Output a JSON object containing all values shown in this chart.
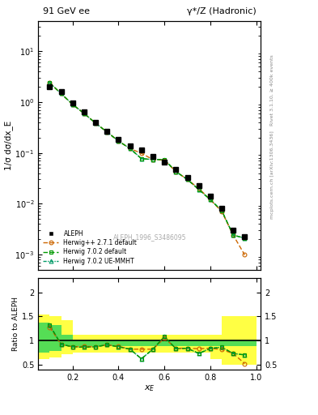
{
  "title_left": "91 GeV ee",
  "title_right": "γ*/Z (Hadronic)",
  "ylabel_main": "1/σ dσ/dx_E",
  "ylabel_ratio": "Ratio to ALEPH",
  "xlabel": "x_E",
  "watermark": "ALEPH_1996_S3486095",
  "right_label_top": "Rivet 3.1.10, ≥ 400k events",
  "right_label_bottom": "mcplots.cern.ch [arXiv:1306.3436]",
  "aleph_x": [
    0.1,
    0.15,
    0.2,
    0.25,
    0.3,
    0.35,
    0.4,
    0.45,
    0.5,
    0.55,
    0.6,
    0.65,
    0.7,
    0.75,
    0.8,
    0.85,
    0.9,
    0.95
  ],
  "aleph_y": [
    2.0,
    1.6,
    0.95,
    0.65,
    0.4,
    0.27,
    0.185,
    0.135,
    0.115,
    0.085,
    0.065,
    0.048,
    0.033,
    0.023,
    0.014,
    0.008,
    0.003,
    0.0022
  ],
  "aleph_yerr": [
    0.06,
    0.05,
    0.025,
    0.018,
    0.012,
    0.008,
    0.006,
    0.005,
    0.004,
    0.003,
    0.002,
    0.002,
    0.0015,
    0.001,
    0.0006,
    0.0004,
    0.0003,
    0.0002
  ],
  "hw271_x": [
    0.1,
    0.15,
    0.2,
    0.25,
    0.3,
    0.35,
    0.4,
    0.45,
    0.5,
    0.55,
    0.6,
    0.65,
    0.7,
    0.75,
    0.8,
    0.85,
    0.9,
    0.95
  ],
  "hw271_y": [
    2.4,
    1.47,
    0.9,
    0.6,
    0.385,
    0.258,
    0.171,
    0.122,
    0.098,
    0.074,
    0.072,
    0.043,
    0.03,
    0.02,
    0.012,
    0.007,
    0.0024,
    0.00098
  ],
  "hw702_x": [
    0.1,
    0.15,
    0.2,
    0.25,
    0.3,
    0.35,
    0.4,
    0.45,
    0.5,
    0.55,
    0.6,
    0.65,
    0.7,
    0.75,
    0.8,
    0.85,
    0.9,
    0.95
  ],
  "hw702_y": [
    2.4,
    1.47,
    0.9,
    0.6,
    0.385,
    0.258,
    0.171,
    0.122,
    0.077,
    0.074,
    0.074,
    0.043,
    0.03,
    0.019,
    0.012,
    0.0073,
    0.0024,
    0.0021
  ],
  "hwue_x": [
    0.1,
    0.15,
    0.2,
    0.25,
    0.3,
    0.35,
    0.4,
    0.45,
    0.5,
    0.55,
    0.6,
    0.65,
    0.7,
    0.75,
    0.8,
    0.85,
    0.9,
    0.95
  ],
  "hwue_y": [
    2.4,
    1.47,
    0.9,
    0.6,
    0.385,
    0.258,
    0.171,
    0.122,
    0.077,
    0.074,
    0.074,
    0.043,
    0.03,
    0.019,
    0.012,
    0.0073,
    0.0024,
    0.0021
  ],
  "ratio_hw271": [
    1.28,
    0.92,
    0.87,
    0.88,
    0.87,
    0.91,
    0.88,
    0.82,
    0.82,
    0.82,
    1.05,
    0.84,
    0.84,
    0.83,
    0.84,
    0.81,
    0.73,
    0.52
  ],
  "ratio_hw702": [
    1.32,
    0.92,
    0.87,
    0.86,
    0.87,
    0.91,
    0.87,
    0.82,
    0.62,
    0.82,
    1.08,
    0.83,
    0.84,
    0.73,
    0.83,
    0.86,
    0.73,
    0.7
  ],
  "ratio_hwue": [
    1.32,
    0.92,
    0.87,
    0.86,
    0.87,
    0.91,
    0.87,
    0.82,
    0.62,
    0.82,
    1.08,
    0.83,
    0.84,
    0.73,
    0.84,
    0.86,
    0.73,
    0.7
  ],
  "band_x_edges": [
    0.05,
    0.1,
    0.15,
    0.2,
    0.25,
    0.3,
    0.35,
    0.4,
    0.45,
    0.5,
    0.55,
    0.6,
    0.65,
    0.7,
    0.75,
    0.8,
    0.85,
    0.9,
    1.0
  ],
  "band_yellow_lo": [
    0.62,
    0.65,
    0.72,
    0.75,
    0.75,
    0.75,
    0.75,
    0.75,
    0.75,
    0.75,
    0.75,
    0.75,
    0.75,
    0.75,
    0.75,
    0.62,
    0.5,
    0.5
  ],
  "band_yellow_hi": [
    1.55,
    1.5,
    1.42,
    1.12,
    1.12,
    1.12,
    1.12,
    1.12,
    1.12,
    1.12,
    1.12,
    1.12,
    1.12,
    1.12,
    1.12,
    1.12,
    1.5,
    1.5
  ],
  "band_green_lo": [
    0.75,
    0.78,
    0.88,
    0.88,
    0.88,
    0.88,
    0.88,
    0.88,
    0.88,
    0.88,
    0.88,
    0.88,
    0.88,
    0.88,
    0.88,
    0.88,
    0.88,
    0.88
  ],
  "band_green_hi": [
    1.38,
    1.32,
    1.12,
    1.02,
    1.02,
    1.02,
    1.02,
    1.02,
    1.02,
    1.02,
    1.02,
    1.02,
    1.02,
    1.02,
    1.02,
    1.02,
    1.02,
    1.02
  ],
  "color_aleph": "#000000",
  "color_hw271": "#cc6600",
  "color_hw702": "#009900",
  "color_hwue": "#009966",
  "color_yellow": "#ffff44",
  "color_green": "#55dd55",
  "ylim_main": [
    0.0005,
    40
  ],
  "ylim_ratio": [
    0.4,
    2.3
  ],
  "xlim": [
    0.05,
    1.02
  ]
}
